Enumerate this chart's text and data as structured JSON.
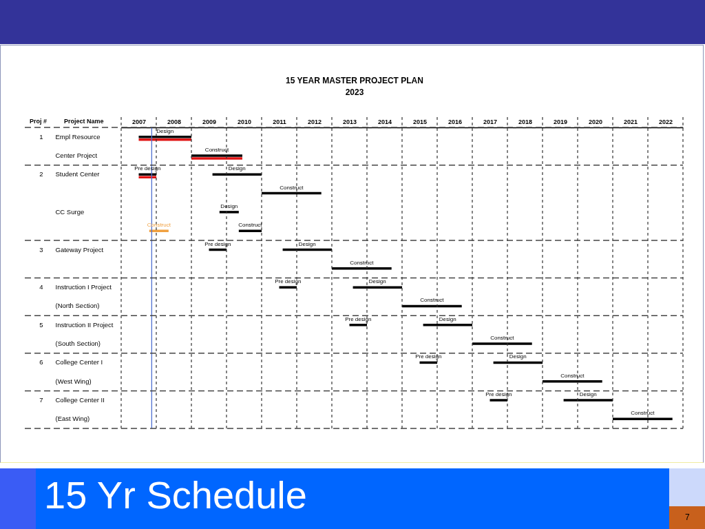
{
  "chart_data": {
    "type": "bar",
    "orientation": "horizontal",
    "title": "15 YEAR MASTER PROJECT PLAN",
    "subtitle": "2023",
    "ylabel": "Project Name",
    "categories": [
      "Empl Resource",
      "Center Project",
      "Student Center",
      null,
      "CC Surge",
      null,
      "Gateway Project",
      null,
      "Instruction I Project",
      "(North Section)",
      "Instruction II Project",
      "(South Section)",
      "College Center I",
      "(West Wing)",
      "College Center II",
      "(East Wing)"
    ],
    "y2_categories": [
      "1",
      null,
      "2",
      null,
      null,
      null,
      "3",
      null,
      "4",
      null,
      "5",
      null,
      "6",
      null,
      "7",
      null
    ],
    "series": [
      {
        "color": "#000000",
        "base": [
          null,
          null,
          2007.5,
          null,
          null,
          null,
          2009.5,
          null,
          2011.5,
          null,
          2013.5,
          null,
          2015.5,
          null,
          2017.5,
          null
        ],
        "values": [
          null,
          null,
          0.5,
          null,
          null,
          null,
          0.5,
          null,
          0.5,
          null,
          0.5,
          null,
          0.5,
          null,
          0.5,
          null
        ],
        "value_labels": [
          null,
          null,
          "Pre design",
          null,
          null,
          null,
          "Pre design",
          null,
          "Pre design",
          null,
          "Pre design",
          null,
          "Pre design",
          null,
          "Pre design",
          null
        ]
      },
      {
        "color": "#000000",
        "base": [
          2007.5,
          null,
          2009.6,
          null,
          2009.8,
          null,
          2011.6,
          null,
          2013.6,
          null,
          2015.6,
          null,
          2017.6,
          null,
          2019.6,
          null
        ],
        "values": [
          1.5,
          null,
          1.4,
          null,
          0.55,
          null,
          1.4,
          null,
          1.4,
          null,
          1.4,
          null,
          1.4,
          null,
          1.4,
          null
        ],
        "value_labels": [
          "Design",
          null,
          "Design",
          null,
          "Design",
          null,
          "Design",
          null,
          "Design",
          null,
          "Design",
          null,
          "Design",
          null,
          "Design",
          null
        ]
      },
      {
        "color": "#000000",
        "base": [
          null,
          2009,
          null,
          2011,
          null,
          2010.35,
          null,
          2013,
          null,
          2015,
          null,
          2017,
          null,
          2019,
          null,
          2021
        ],
        "values": [
          null,
          1.45,
          null,
          1.7,
          null,
          0.65,
          null,
          1.7,
          null,
          1.7,
          null,
          1.7,
          null,
          1.7,
          null,
          1.7
        ],
        "value_labels": [
          null,
          "Construct",
          null,
          "Construct",
          null,
          "Construct",
          null,
          "Construct",
          null,
          "Construct",
          null,
          "Construct",
          null,
          "Construct",
          null,
          "Construct"
        ]
      },
      {
        "color": "#e01414",
        "base": [
          2007.5,
          2009,
          2007.5,
          null,
          null,
          null,
          null,
          null,
          null,
          null,
          null,
          null,
          null,
          null,
          null,
          null
        ],
        "values": [
          1.5,
          1.45,
          0.5,
          null,
          null,
          null,
          null,
          null,
          null,
          null,
          null,
          null,
          null,
          null,
          null,
          null
        ]
      },
      {
        "color": "#f0a040",
        "base": [
          null,
          null,
          null,
          null,
          null,
          2007.8,
          null,
          null,
          null,
          null,
          null,
          null,
          null,
          null,
          null,
          null
        ],
        "values": [
          null,
          null,
          null,
          null,
          null,
          0.55,
          null,
          null,
          null,
          null,
          null,
          null,
          null,
          null,
          null,
          null
        ],
        "value_labels": [
          null,
          null,
          null,
          null,
          null,
          "Construct",
          null,
          null,
          null,
          null,
          null,
          null,
          null,
          null,
          null,
          null
        ]
      }
    ],
    "xlim": [
      2007,
      2023
    ],
    "xticks": [
      {
        "value": 2007,
        "label": null
      },
      {
        "value": 2007.5,
        "label": "2007"
      },
      {
        "value": 2008,
        "label": null
      },
      {
        "value": 2008.5,
        "label": "2008"
      },
      {
        "value": 2009,
        "label": null
      },
      {
        "value": 2009.5,
        "label": "2009"
      },
      {
        "value": 2010,
        "label": null
      },
      {
        "value": 2010.5,
        "label": "2010"
      },
      {
        "value": 2011,
        "label": null
      },
      {
        "value": 2011.5,
        "label": "2011"
      },
      {
        "value": 2012,
        "label": null
      },
      {
        "value": 2012.5,
        "label": "2012"
      },
      {
        "value": 2013,
        "label": null
      },
      {
        "value": 2013.5,
        "label": "2013"
      },
      {
        "value": 2014,
        "label": null
      },
      {
        "value": 2014.5,
        "label": "2014"
      },
      {
        "value": 2015,
        "label": null
      },
      {
        "value": 2015.5,
        "label": "2015"
      },
      {
        "value": 2016,
        "label": null
      },
      {
        "value": 2016.5,
        "label": "2016"
      },
      {
        "value": 2017,
        "label": null
      },
      {
        "value": 2017.5,
        "label": "2017"
      },
      {
        "value": 2018,
        "label": null
      },
      {
        "value": 2018.5,
        "label": "2018"
      },
      {
        "value": 2019,
        "label": null
      },
      {
        "value": 2019.5,
        "label": "2019"
      },
      {
        "value": 2020,
        "label": null
      },
      {
        "value": 2020.5,
        "label": "2020"
      },
      {
        "value": 2021,
        "label": null
      },
      {
        "value": 2021.5,
        "label": "2021"
      },
      {
        "value": 2022,
        "label": null
      },
      {
        "value": 2022.5,
        "label": "2022"
      },
      {
        "value": 2023,
        "label": null
      }
    ],
    "grid": "x",
    "ref_lines": [
      {
        "axis": "x",
        "value": 2007.87,
        "color": "#5070d0"
      }
    ],
    "annotations": [
      "Proj #",
      "15 Yr Schedule",
      "7"
    ]
  }
}
